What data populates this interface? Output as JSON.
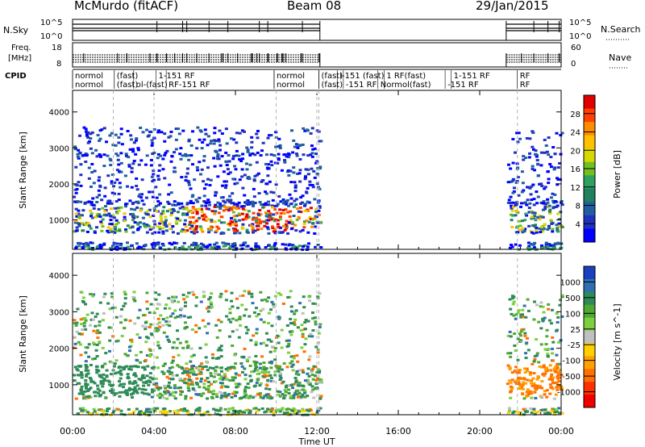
{
  "header": {
    "station": "McMurdo (fitACF)",
    "beam": "Beam 08",
    "date": "29/Jan/2015"
  },
  "panels": {
    "nsky": {
      "label": "N.Sky",
      "left_ticks": [
        "10^5",
        "10^0"
      ],
      "right_ticks": [
        "10^5",
        "10^0"
      ],
      "right_label": "N.Search"
    },
    "freq": {
      "label_line1": "Freq.",
      "label_line2": "[MHz]",
      "left_ticks": [
        "18",
        "8"
      ],
      "right_ticks": [
        "60",
        "0"
      ],
      "right_label": "Nave"
    },
    "cpid": {
      "label": "CPID",
      "segments": [
        {
          "t": 0.0,
          "row": 0,
          "text": "normol"
        },
        {
          "t": 0.0,
          "row": 1,
          "text": "normol"
        },
        {
          "t": 2.05,
          "row": 0,
          "text": "(fast)"
        },
        {
          "t": 2.05,
          "row": 1,
          "text": "(fast)"
        },
        {
          "t": 3.0,
          "row": 1,
          "text": "ol-(fast)"
        },
        {
          "t": 4.1,
          "row": 0,
          "text": "1-151 RF"
        },
        {
          "t": 4.6,
          "row": 1,
          "text": "RF-151 RF"
        },
        {
          "t": 9.9,
          "row": 0,
          "text": "normol"
        },
        {
          "t": 9.9,
          "row": 1,
          "text": "normol"
        },
        {
          "t": 12.1,
          "row": 0,
          "text": "(fast)"
        },
        {
          "t": 12.1,
          "row": 1,
          "text": "(fast)"
        },
        {
          "t": 13.0,
          "row": 0,
          "text": "l-151 (fast)"
        },
        {
          "t": 13.3,
          "row": 1,
          "text": "-151 RF"
        },
        {
          "t": 15.3,
          "row": 0,
          "text": "1 RF(fast)"
        },
        {
          "t": 15.0,
          "row": 1,
          "text": "Normol(fast)"
        },
        {
          "t": 18.6,
          "row": 0,
          "text": "1-151 RF"
        },
        {
          "t": 18.3,
          "row": 1,
          "text": "-151 RF"
        },
        {
          "t": 21.85,
          "row": 0,
          "text": "RF"
        },
        {
          "t": 21.85,
          "row": 1,
          "text": "RF"
        }
      ]
    },
    "power": {
      "ylabel": "Slant Range [km]",
      "cbar_label": "Power [dB]",
      "cbar_ticks": [
        "28",
        "24",
        "20",
        "16",
        "12",
        "8",
        "4"
      ],
      "cbar_colors": [
        "#e00000",
        "#ff4000",
        "#ff8c00",
        "#ffc000",
        "#d8d800",
        "#70c020",
        "#30a060",
        "#208060",
        "#1f5fa0",
        "#2030c0",
        "#0000ff"
      ]
    },
    "velocity": {
      "ylabel": "Slant Range [km]",
      "cbar_label": "Velocity [m s^-1]",
      "cbar_ticks": [
        "1000",
        "500",
        "100",
        "25",
        "-25",
        "-100",
        "-500",
        "-1000"
      ],
      "cbar_colors": [
        "#1a40c0",
        "#2f6fb0",
        "#2e8b57",
        "#4fa832",
        "#7cd040",
        "#c0c0c0",
        "#ffd000",
        "#ffa000",
        "#ff7000",
        "#ff3000",
        "#ee0000"
      ]
    }
  },
  "xlabel": "Time UT",
  "chart_data": {
    "type": "heatmap",
    "xlim_hours": [
      0,
      24
    ],
    "x_ticks": [
      "00:00",
      "04:00",
      "08:00",
      "12:00",
      "16:00",
      "20:00",
      "00:00"
    ],
    "ylim_km": [
      180,
      4600
    ],
    "y_ticks": [
      1000,
      2000,
      3000,
      4000
    ],
    "data_intervals_hours": [
      [
        0.0,
        12.15
      ],
      [
        21.3,
        24.0
      ]
    ],
    "power_band": {
      "range_km": [
        700,
        1400
      ],
      "peak_db": 28
    },
    "velocity_band": {
      "range_km": [
        700,
        1600
      ],
      "dominant_ms": 100
    }
  }
}
